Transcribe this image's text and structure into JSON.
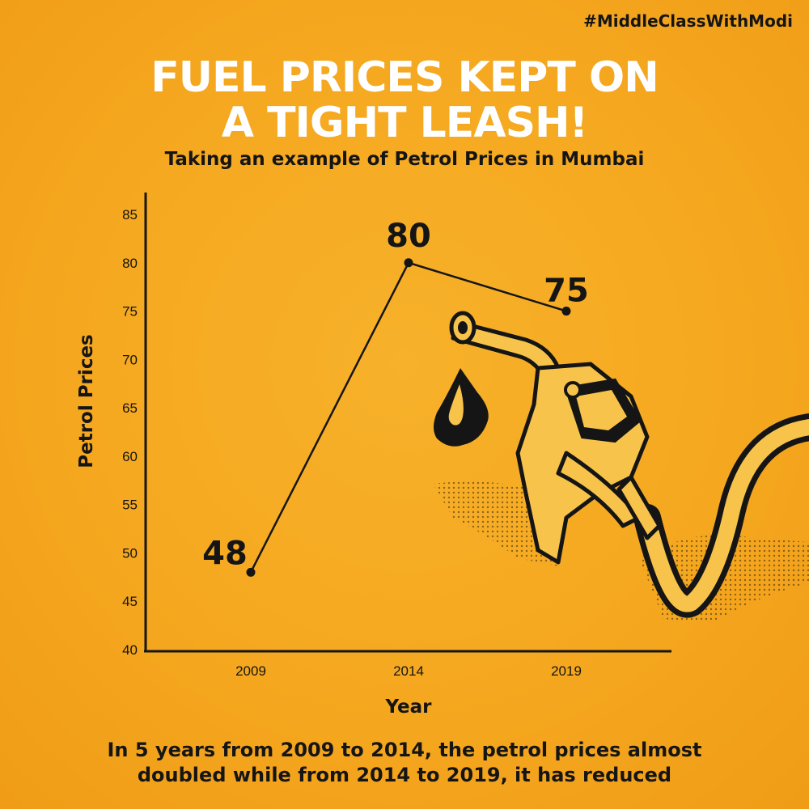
{
  "header": {
    "hashtag": "#MiddleClassWithModi",
    "title_line1": "FUEL PRICES KEPT ON",
    "title_line2": "A TIGHT LEASH!",
    "subtitle": "Taking an example of Petrol Prices in Mumbai"
  },
  "footer": {
    "line1": "In 5 years from 2009 to 2014, the petrol prices almost",
    "line2": "doubled while from 2014 to 2019, it has reduced"
  },
  "colors": {
    "background": "#f5a81f",
    "title": "#ffffff",
    "ink": "#151515",
    "pump_fill": "#f7c34a"
  },
  "illustration": {
    "pump_icon": "fuel-nozzle-icon",
    "drop_icon": "oil-drop-icon"
  },
  "chart_data": {
    "type": "line",
    "title": "",
    "xlabel": "Year",
    "ylabel": "Petrol Prices",
    "categories": [
      "2009",
      "2014",
      "2019"
    ],
    "series": [
      {
        "values": [
          48,
          80,
          75
        ]
      }
    ],
    "data_labels": [
      "48",
      "80",
      "75"
    ],
    "ylim": [
      40,
      85
    ],
    "yticks": [
      40,
      45,
      50,
      55,
      60,
      65,
      70,
      75,
      80,
      85
    ],
    "grid": false,
    "legend": "none"
  }
}
